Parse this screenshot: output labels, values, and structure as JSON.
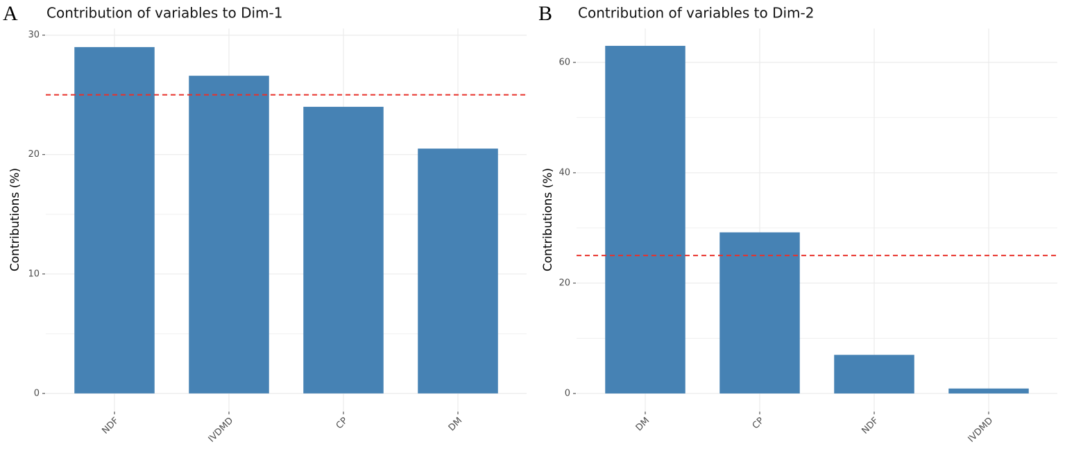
{
  "chart_data": [
    {
      "type": "bar",
      "panel_label": "A",
      "title": "Contribution of variables to Dim-1",
      "y_label": "Contributions (%)",
      "categories": [
        "NDF",
        "IVDMD",
        "CP",
        "DM"
      ],
      "values": [
        29.0,
        26.6,
        24.0,
        20.5
      ],
      "color": "#4682b4",
      "ylim": [
        -1.46,
        30.56
      ],
      "yticks": [
        0,
        10,
        20,
        30
      ],
      "minor_yticks": [
        5,
        15,
        25
      ],
      "grid": true,
      "reference_line": 25,
      "reference_color": "#e8312a"
    },
    {
      "type": "bar",
      "panel_label": "B",
      "title": "Contribution of variables to Dim-2",
      "y_label": "Contributions (%)",
      "categories": [
        "DM",
        "CP",
        "NDF",
        "IVDMD"
      ],
      "values": [
        63.0,
        29.2,
        7.0,
        0.9
      ],
      "color": "#4682b4",
      "ylim": [
        -3.15,
        66.15
      ],
      "yticks": [
        0,
        20,
        40,
        60
      ],
      "minor_yticks": [
        10,
        30,
        50
      ],
      "grid": true,
      "reference_line": 25,
      "reference_color": "#e8312a"
    }
  ]
}
